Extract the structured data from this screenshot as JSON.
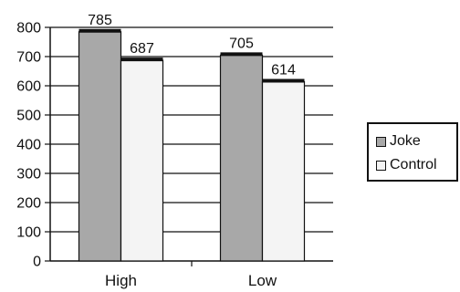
{
  "chart_data": {
    "type": "bar",
    "categories": [
      "High",
      "Low"
    ],
    "series": [
      {
        "name": "Joke",
        "values": [
          785,
          705
        ],
        "color": "#a8a8a8"
      },
      {
        "name": "Control",
        "values": [
          687,
          614
        ],
        "color": "#f4f4f4"
      }
    ],
    "ylim": [
      0,
      800
    ],
    "yticks": [
      0,
      100,
      200,
      300,
      400,
      500,
      600,
      700,
      800
    ],
    "grid": true,
    "data_labels": true,
    "legend_position": "right"
  }
}
